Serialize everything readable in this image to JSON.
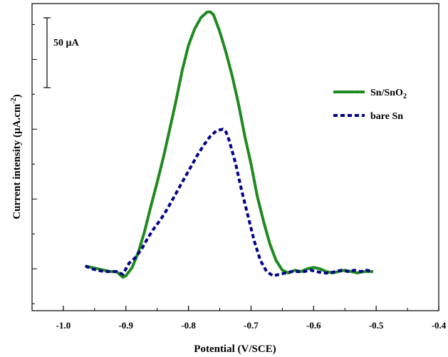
{
  "chart_data": {
    "type": "line",
    "xlabel": "Potential (V/SCE)",
    "ylabel_main": "Current intensity (µA.cm",
    "ylabel_sup": "-2",
    "ylabel_close": ")",
    "xlim": [
      -1.05,
      -0.4
    ],
    "ylim": [
      -30,
      190
    ],
    "xticks": [
      -1.0,
      -0.9,
      -0.8,
      -0.7,
      -0.6,
      -0.5,
      -0.4
    ],
    "xtick_labels": [
      "-1.0",
      "-0.9",
      "-0.8",
      "-0.7",
      "-0.6",
      "-0.5",
      "-0.4"
    ],
    "y_tick_labels_shown": false,
    "scale_bar": {
      "label": "50 µA",
      "value": 50
    },
    "legend_position": "top-right",
    "series": [
      {
        "name": "Sn/SnO",
        "name_sub": "2",
        "color": "#1f8a1f",
        "style": "solid",
        "x": [
          -0.965,
          -0.955,
          -0.945,
          -0.935,
          -0.925,
          -0.915,
          -0.905,
          -0.9,
          -0.89,
          -0.88,
          -0.87,
          -0.86,
          -0.85,
          -0.84,
          -0.83,
          -0.82,
          -0.81,
          -0.8,
          -0.79,
          -0.78,
          -0.77,
          -0.765,
          -0.76,
          -0.755,
          -0.75,
          -0.74,
          -0.73,
          -0.72,
          -0.71,
          -0.7,
          -0.69,
          -0.68,
          -0.67,
          -0.66,
          -0.65,
          -0.64,
          -0.63,
          -0.62,
          -0.61,
          -0.6,
          -0.59,
          -0.58,
          -0.57,
          -0.56,
          -0.55,
          -0.54,
          -0.53,
          -0.52,
          -0.51,
          -0.505
        ],
        "y": [
          2,
          1,
          0,
          -1,
          -2,
          -2,
          -6,
          -5,
          1,
          12,
          27,
          45,
          62,
          80,
          100,
          120,
          142,
          160,
          172,
          180,
          184,
          184,
          182,
          176,
          170,
          155,
          138,
          118,
          95,
          75,
          52,
          34,
          18,
          6,
          -1,
          -3,
          -1,
          -2,
          0,
          1,
          0,
          -2,
          -3,
          -2,
          -1,
          -2,
          -3,
          -2,
          -2,
          -2
        ]
      },
      {
        "name": "bare Sn",
        "color": "#00008b",
        "style": "dashed",
        "x": [
          -0.965,
          -0.955,
          -0.945,
          -0.935,
          -0.925,
          -0.915,
          -0.905,
          -0.895,
          -0.885,
          -0.875,
          -0.865,
          -0.855,
          -0.845,
          -0.835,
          -0.825,
          -0.815,
          -0.805,
          -0.795,
          -0.785,
          -0.775,
          -0.765,
          -0.755,
          -0.745,
          -0.74,
          -0.735,
          -0.725,
          -0.715,
          -0.705,
          -0.695,
          -0.685,
          -0.675,
          -0.665,
          -0.655,
          -0.645,
          -0.635,
          -0.625,
          -0.615,
          -0.605,
          -0.595,
          -0.585,
          -0.575,
          -0.565,
          -0.555,
          -0.545,
          -0.535,
          -0.525,
          -0.515,
          -0.505
        ],
        "y": [
          2,
          0,
          -1,
          -2,
          -2,
          -2,
          -4,
          4,
          8,
          14,
          22,
          29,
          35,
          42,
          50,
          58,
          66,
          74,
          82,
          89,
          95,
          99,
          100,
          98,
          92,
          76,
          56,
          38,
          20,
          6,
          -2,
          -5,
          -4,
          -3,
          -2,
          -2,
          -2,
          -1,
          -2,
          -3,
          -3,
          -2,
          -1,
          -2,
          -1,
          -2,
          -1,
          -2
        ]
      }
    ]
  }
}
